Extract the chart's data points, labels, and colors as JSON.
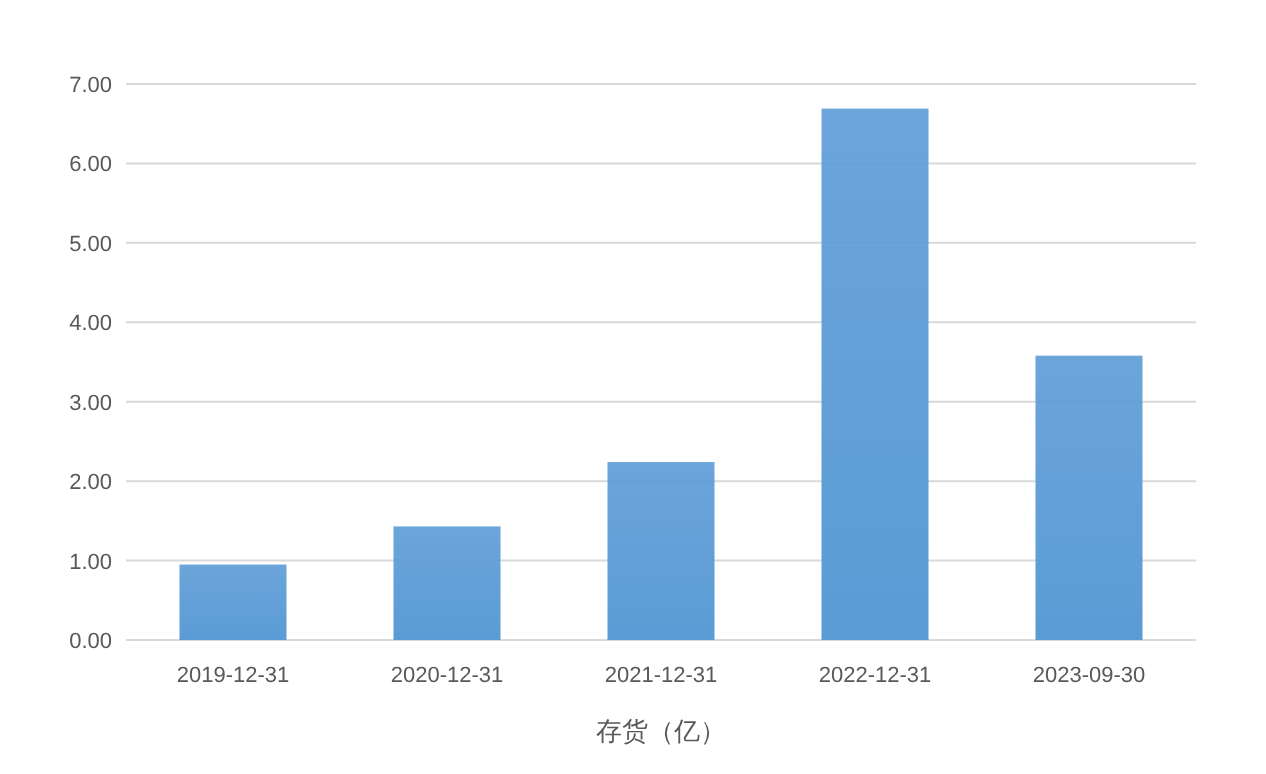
{
  "chart_data": {
    "type": "bar",
    "xlabel": "存货（亿）",
    "categories": [
      "2019-12-31",
      "2020-12-31",
      "2021-12-31",
      "2022-12-31",
      "2023-09-30"
    ],
    "values": [
      0.95,
      1.43,
      2.24,
      6.69,
      3.58
    ],
    "color": "#5b9bd5",
    "ylim": [
      0,
      7
    ],
    "yticks": [
      {
        "value": 0,
        "label": "0.00"
      },
      {
        "value": 1,
        "label": "1.00"
      },
      {
        "value": 2,
        "label": "2.00"
      },
      {
        "value": 3,
        "label": "3.00"
      },
      {
        "value": 4,
        "label": "4.00"
      },
      {
        "value": 5,
        "label": "5.00"
      },
      {
        "value": 6,
        "label": "6.00"
      },
      {
        "value": 7,
        "label": "7.00"
      }
    ],
    "grid": "y"
  }
}
